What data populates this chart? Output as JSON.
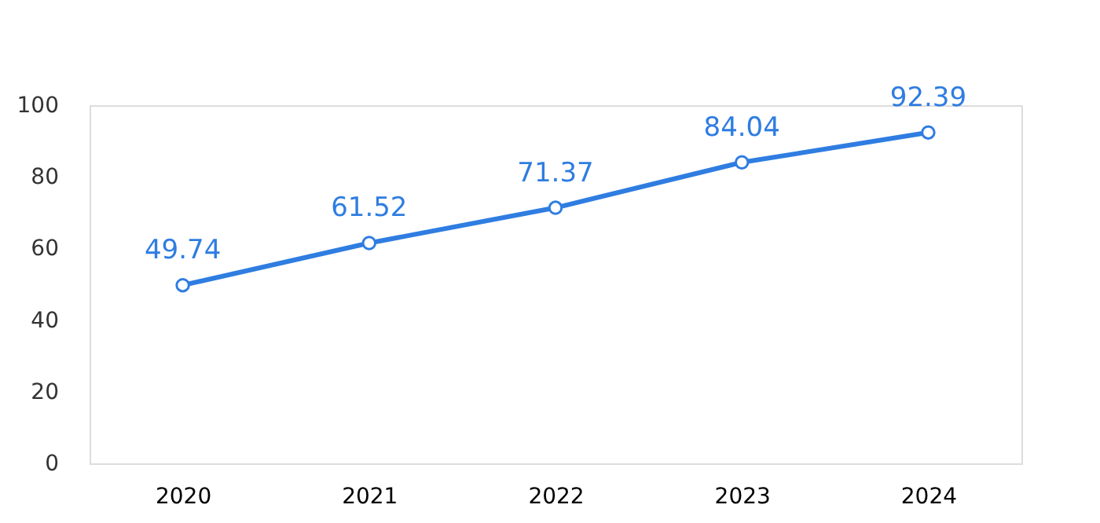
{
  "chart_data": {
    "type": "line",
    "categories": [
      "2020",
      "2021",
      "2022",
      "2023",
      "2024"
    ],
    "series": [
      {
        "color": "#2f7de1",
        "values": [
          49.74,
          61.52,
          71.37,
          84.04,
          92.39
        ]
      }
    ],
    "ylim": [
      0,
      100
    ],
    "yticks": [
      0,
      20,
      40,
      60,
      80,
      100
    ],
    "grid": false,
    "marker": "circle",
    "line_style": "solid",
    "data_labels": true
  }
}
